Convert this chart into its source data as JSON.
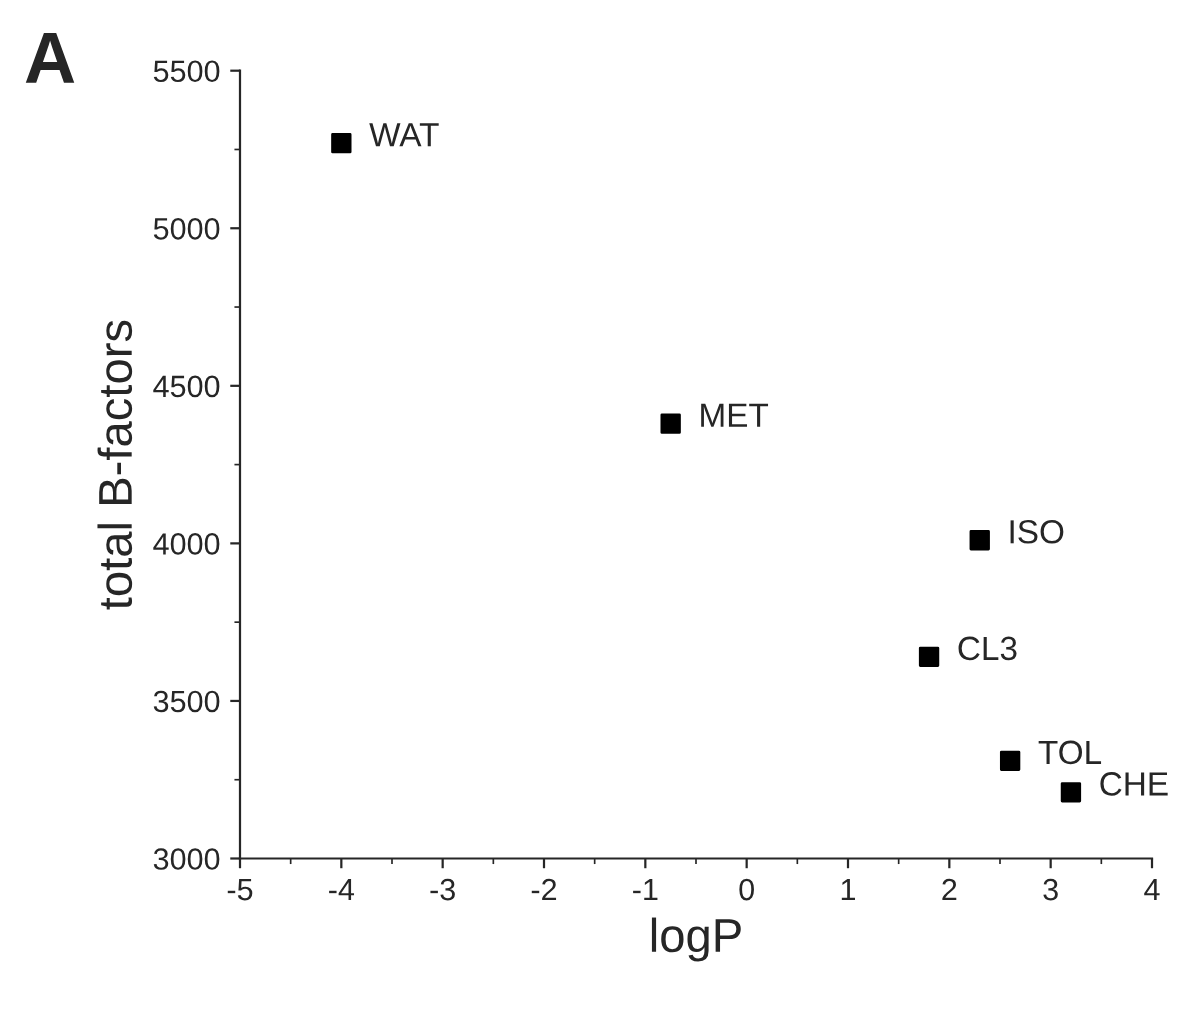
{
  "chart_data": {
    "type": "scatter",
    "xlabel": "logP",
    "ylabel": "total B-factors",
    "x": [
      -4.0,
      -0.75,
      2.3,
      1.8,
      2.6,
      3.2
    ],
    "values": [
      5270,
      4380,
      4010,
      3640,
      3310,
      3210
    ],
    "color": "#000000",
    "marker": "square",
    "xlim": [
      -5,
      4
    ],
    "xticks": [
      -5,
      -4,
      -3,
      -2,
      -1,
      0,
      1,
      2,
      3,
      4
    ],
    "ylim": [
      3000,
      5500
    ],
    "yticks": [
      3000,
      3500,
      4000,
      4500,
      5000,
      5500
    ],
    "grid": false,
    "annotations": [
      "A",
      {
        "text": "WAT",
        "x": -4.0,
        "y": 5270
      },
      {
        "text": "MET",
        "x": -0.75,
        "y": 4380
      },
      {
        "text": "ISO",
        "x": 2.3,
        "y": 4010
      },
      {
        "text": "CL3",
        "x": 1.8,
        "y": 3640
      },
      {
        "text": "TOL",
        "x": 2.6,
        "y": 3310
      },
      {
        "text": "CHE",
        "x": 3.2,
        "y": 3210
      }
    ]
  }
}
